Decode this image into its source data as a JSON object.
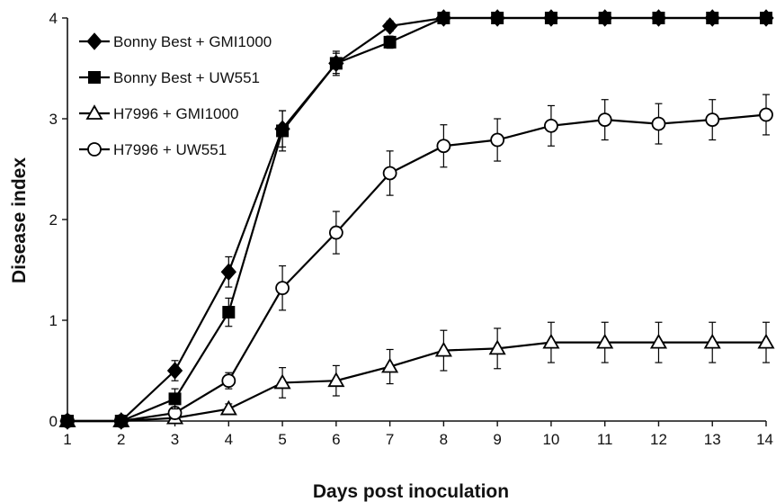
{
  "chart_data": {
    "type": "line",
    "xlabel": "Days post inoculation",
    "ylabel": "Disease index",
    "x": [
      1,
      2,
      3,
      4,
      5,
      6,
      7,
      8,
      9,
      10,
      11,
      12,
      13,
      14
    ],
    "xlim": [
      1,
      14
    ],
    "ylim": [
      0,
      4
    ],
    "x_ticks": [
      "1",
      "2",
      "3",
      "4",
      "5",
      "6",
      "7",
      "8",
      "9",
      "10",
      "11",
      "12",
      "13",
      "14"
    ],
    "y_ticks": [
      "0",
      "1",
      "2",
      "3",
      "4"
    ],
    "grid": false,
    "legend_position": "top-left",
    "series": [
      {
        "name": "Bonny Best + GMI1000",
        "marker": "filled-diamond",
        "values": [
          0,
          0,
          0.5,
          1.48,
          2.9,
          3.55,
          3.92,
          4,
          4,
          4,
          4,
          4,
          4,
          4
        ],
        "errors": [
          0,
          0,
          0.1,
          0.15,
          0.18,
          0.12,
          0.05,
          0,
          0,
          0,
          0,
          0,
          0,
          0
        ]
      },
      {
        "name": "Bonny Best + UW551",
        "marker": "filled-square",
        "values": [
          0,
          0,
          0.22,
          1.08,
          2.88,
          3.55,
          3.76,
          4,
          4,
          4,
          4,
          4,
          4,
          4
        ],
        "errors": [
          0,
          0,
          0.1,
          0.14,
          0.2,
          0.1,
          0.06,
          0,
          0,
          0,
          0,
          0,
          0,
          0
        ]
      },
      {
        "name": "H7996 + GMI1000",
        "marker": "open-triangle",
        "values": [
          0,
          0,
          0.03,
          0.12,
          0.38,
          0.4,
          0.54,
          0.7,
          0.72,
          0.78,
          0.78,
          0.78,
          0.78,
          0.78
        ],
        "errors": [
          0,
          0,
          0.03,
          0.05,
          0.15,
          0.15,
          0.17,
          0.2,
          0.2,
          0.2,
          0.2,
          0.2,
          0.2,
          0.2
        ]
      },
      {
        "name": "H7996 + UW551",
        "marker": "open-circle",
        "values": [
          0,
          0,
          0.08,
          0.4,
          1.32,
          1.87,
          2.46,
          2.73,
          2.79,
          2.93,
          2.99,
          2.95,
          2.99,
          3.04
        ],
        "errors": [
          0,
          0,
          0.06,
          0.08,
          0.22,
          0.21,
          0.22,
          0.21,
          0.21,
          0.2,
          0.2,
          0.2,
          0.2,
          0.2
        ]
      }
    ]
  }
}
